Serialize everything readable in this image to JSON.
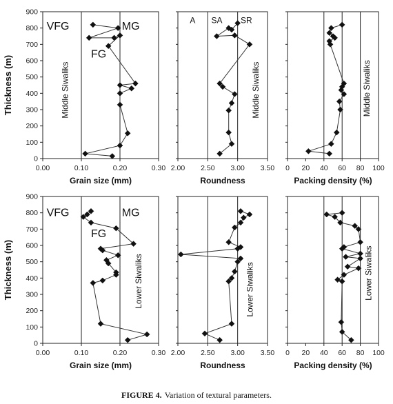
{
  "figure_caption": {
    "label": "FIGURE 4.",
    "text": "Variation of textural parameters."
  },
  "chart_data": [
    {
      "type": "scatter",
      "panel": "top-grain-size",
      "xlabel": "Grain size (mm)",
      "ylabel": "Thickness (m)",
      "xlim": [
        0,
        0.3
      ],
      "ylim": [
        0,
        900
      ],
      "xticks": [
        "0.00",
        "0.10",
        "0.20",
        "0.30"
      ],
      "yticks": [
        "0",
        "100",
        "200",
        "300",
        "400",
        "500",
        "600",
        "700",
        "800",
        "900"
      ],
      "vlines": [
        0.1,
        0.2
      ],
      "annotations": [
        {
          "text": "VFG",
          "x": 0.01,
          "y": 790,
          "size": "large"
        },
        {
          "text": "MG",
          "x": 0.205,
          "y": 790,
          "size": "large"
        },
        {
          "text": "FG",
          "x": 0.125,
          "y": 620,
          "size": "large"
        },
        {
          "text": "Middle Siwaliks",
          "x": 0.065,
          "y": 420,
          "rotate": true
        }
      ],
      "series": [
        {
          "x": [
            0.13,
            0.195,
            0.12,
            0.185,
            0.2,
            0.17,
            0.24,
            0.2,
            0.23,
            0.2,
            0.2,
            0.22,
            0.2,
            0.11,
            0.18
          ],
          "y": [
            820,
            800,
            740,
            740,
            755,
            690,
            460,
            450,
            430,
            400,
            330,
            155,
            80,
            30,
            15
          ]
        }
      ]
    },
    {
      "type": "scatter",
      "panel": "top-roundness",
      "xlabel": "Roundness",
      "ylabel": "",
      "xlim": [
        2.0,
        3.5
      ],
      "ylim": [
        0,
        900
      ],
      "xticks": [
        "2.00",
        "2.50",
        "3.00",
        "3.50"
      ],
      "yticks": [],
      "vlines": [
        2.5,
        3.0
      ],
      "annotations": [
        {
          "text": "A",
          "x": 2.2,
          "y": 830,
          "size": "small"
        },
        {
          "text": "SA",
          "x": 2.56,
          "y": 830,
          "size": "small"
        },
        {
          "text": "SR",
          "x": 3.05,
          "y": 830,
          "size": "small"
        },
        {
          "text": "Middle Siwaliks",
          "x": 3.35,
          "y": 420,
          "rotate": true
        }
      ],
      "series": [
        {
          "x": [
            3.0,
            2.9,
            2.85,
            2.65,
            2.95,
            3.2,
            2.7,
            2.75,
            2.95,
            2.9,
            2.85,
            2.85,
            2.9,
            2.7
          ],
          "y": [
            830,
            790,
            800,
            750,
            755,
            700,
            460,
            440,
            395,
            340,
            295,
            160,
            90,
            30
          ]
        }
      ]
    },
    {
      "type": "scatter",
      "panel": "top-packing",
      "xlabel": "Packing density (%)",
      "ylabel": "",
      "xlim": [
        0,
        100
      ],
      "ylim": [
        0,
        900
      ],
      "xticks": [
        "0",
        "20",
        "40",
        "60",
        "80",
        "100"
      ],
      "yticks": [],
      "vlines": [
        40,
        60,
        80
      ],
      "annotations": [
        {
          "text": "Middle Siwaliks",
          "x": 90,
          "y": 430,
          "rotate": true
        }
      ],
      "series": [
        {
          "x": [
            60,
            48,
            46,
            50,
            52,
            46,
            47,
            62,
            60,
            59,
            62,
            57,
            58,
            54,
            48,
            23,
            46
          ],
          "y": [
            820,
            800,
            770,
            750,
            740,
            720,
            700,
            460,
            440,
            420,
            395,
            350,
            300,
            160,
            90,
            45,
            30
          ]
        }
      ]
    },
    {
      "type": "scatter",
      "panel": "bottom-grain-size",
      "xlabel": "Grain size (mm)",
      "ylabel": "Thickness (m)",
      "xlim": [
        0,
        0.3
      ],
      "ylim": [
        0,
        900
      ],
      "xticks": [
        "0.00",
        "0.10",
        "0.20",
        "0.30"
      ],
      "yticks": [
        "0",
        "100",
        "200",
        "300",
        "400",
        "500",
        "600",
        "700",
        "800",
        "900"
      ],
      "vlines": [
        0.1,
        0.2
      ],
      "annotations": [
        {
          "text": "VFG",
          "x": 0.01,
          "y": 780,
          "size": "large"
        },
        {
          "text": "MG",
          "x": 0.205,
          "y": 780,
          "size": "large"
        },
        {
          "text": "FG",
          "x": 0.125,
          "y": 650,
          "size": "large"
        },
        {
          "text": "Lower Siwaliks",
          "x": 0.255,
          "y": 380,
          "rotate": true
        }
      ],
      "series": [
        {
          "x": [
            0.125,
            0.115,
            0.105,
            0.125,
            0.19,
            0.235,
            0.15,
            0.155,
            0.195,
            0.165,
            0.17,
            0.19,
            0.19,
            0.155,
            0.13,
            0.15,
            0.27,
            0.22
          ],
          "y": [
            810,
            790,
            775,
            740,
            705,
            610,
            580,
            570,
            540,
            510,
            490,
            435,
            420,
            385,
            370,
            120,
            55,
            20
          ]
        }
      ]
    },
    {
      "type": "scatter",
      "panel": "bottom-roundness",
      "xlabel": "Roundness",
      "ylabel": "",
      "xlim": [
        2.0,
        3.5
      ],
      "ylim": [
        0,
        900
      ],
      "xticks": [
        "2.00",
        "2.50",
        "3.00",
        "3.50"
      ],
      "yticks": [],
      "vlines": [
        2.5,
        3.0
      ],
      "annotations": [
        {
          "text": "Lower Siwaliks",
          "x": 3.25,
          "y": 330,
          "rotate": true
        }
      ],
      "series": [
        {
          "x": [
            3.05,
            3.2,
            3.1,
            3.05,
            2.95,
            2.85,
            3.05,
            3.0,
            2.05,
            3.05,
            3.0,
            2.95,
            2.9,
            2.85,
            2.9,
            2.45,
            2.7
          ],
          "y": [
            810,
            790,
            770,
            740,
            710,
            620,
            590,
            580,
            545,
            520,
            500,
            440,
            400,
            380,
            120,
            60,
            20
          ]
        }
      ]
    },
    {
      "type": "scatter",
      "panel": "bottom-packing",
      "xlabel": "Packing density (%)",
      "ylabel": "",
      "xlim": [
        0,
        100
      ],
      "ylim": [
        0,
        900
      ],
      "xticks": [
        "0",
        "20",
        "40",
        "60",
        "80",
        "100"
      ],
      "yticks": [],
      "vlines": [
        40,
        60,
        80
      ],
      "annotations": [
        {
          "text": "Lower Siwaliks",
          "x": 92,
          "y": 430,
          "rotate": true
        }
      ],
      "series": [
        {
          "x": [
            60,
            43,
            52,
            58,
            74,
            78,
            80,
            62,
            60,
            80,
            64,
            80,
            66,
            78,
            62,
            55,
            60,
            59,
            60,
            70
          ],
          "y": [
            800,
            790,
            775,
            740,
            720,
            700,
            620,
            590,
            580,
            550,
            530,
            520,
            470,
            460,
            420,
            390,
            380,
            130,
            70,
            20
          ]
        }
      ]
    }
  ]
}
